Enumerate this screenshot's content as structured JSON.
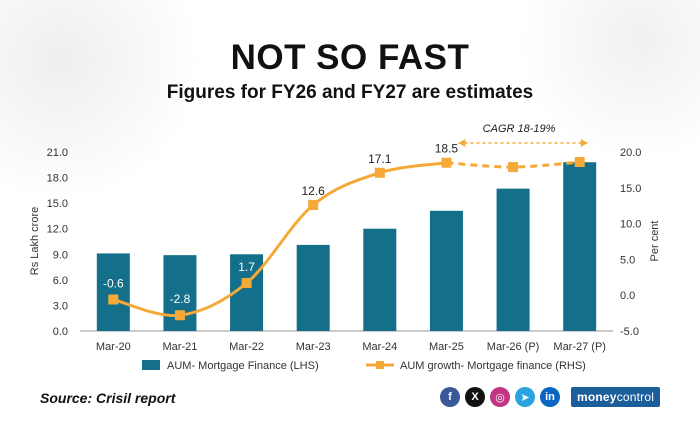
{
  "header": {
    "title": "NOT SO FAST",
    "subtitle": "Figures for FY26 and FY27 are estimates"
  },
  "chart_data": {
    "type": "bar+line",
    "categories": [
      "Mar-20",
      "Mar-21",
      "Mar-22",
      "Mar-23",
      "Mar-24",
      "Mar-25",
      "Mar-26 (P)",
      "Mar-27 (P)"
    ],
    "series": [
      {
        "name": "AUM- Mortgage Finance (LHS)",
        "type": "bar",
        "axis": "left",
        "color": "#14708a",
        "values": [
          9.1,
          8.9,
          9.0,
          10.1,
          12.0,
          14.1,
          16.7,
          19.8
        ]
      },
      {
        "name": "AUM growth- Mortgage finance (RHS)",
        "type": "line",
        "axis": "right",
        "color": "#f5a938",
        "values": [
          -0.6,
          -2.8,
          1.7,
          12.6,
          17.1,
          18.5,
          17.9,
          18.6
        ],
        "labels": [
          "-0.6",
          "-2.8",
          "1.7",
          "12.6",
          "17.1",
          "18.5",
          "",
          ""
        ]
      }
    ],
    "left_axis": {
      "label": "Rs Lakh crore",
      "min": 0,
      "max": 21,
      "ticks": [
        "0.0",
        "3.0",
        "6.0",
        "9.0",
        "12.0",
        "15.0",
        "18.0",
        "21.0"
      ]
    },
    "right_axis": {
      "label": "Per cent",
      "min": -5,
      "max": 20,
      "ticks": [
        "-5.0",
        "0.0",
        "5.0",
        "10.0",
        "15.0",
        "20.0"
      ]
    },
    "annotation": "CAGR 18-19%",
    "legend_position": "bottom"
  },
  "footer": {
    "source": "Source: Crisil report",
    "socials": [
      {
        "icon": "facebook-icon",
        "glyph": "f",
        "color": "#3b5998"
      },
      {
        "icon": "x-icon",
        "glyph": "X",
        "color": "#111111"
      },
      {
        "icon": "instagram-icon",
        "glyph": "◎",
        "color": "#c13584"
      },
      {
        "icon": "telegram-icon",
        "glyph": "➤",
        "color": "#2aa3de"
      },
      {
        "icon": "linkedin-icon",
        "glyph": "in",
        "color": "#0a66c2"
      }
    ],
    "brand": {
      "main": "money",
      "accent": "control"
    }
  }
}
